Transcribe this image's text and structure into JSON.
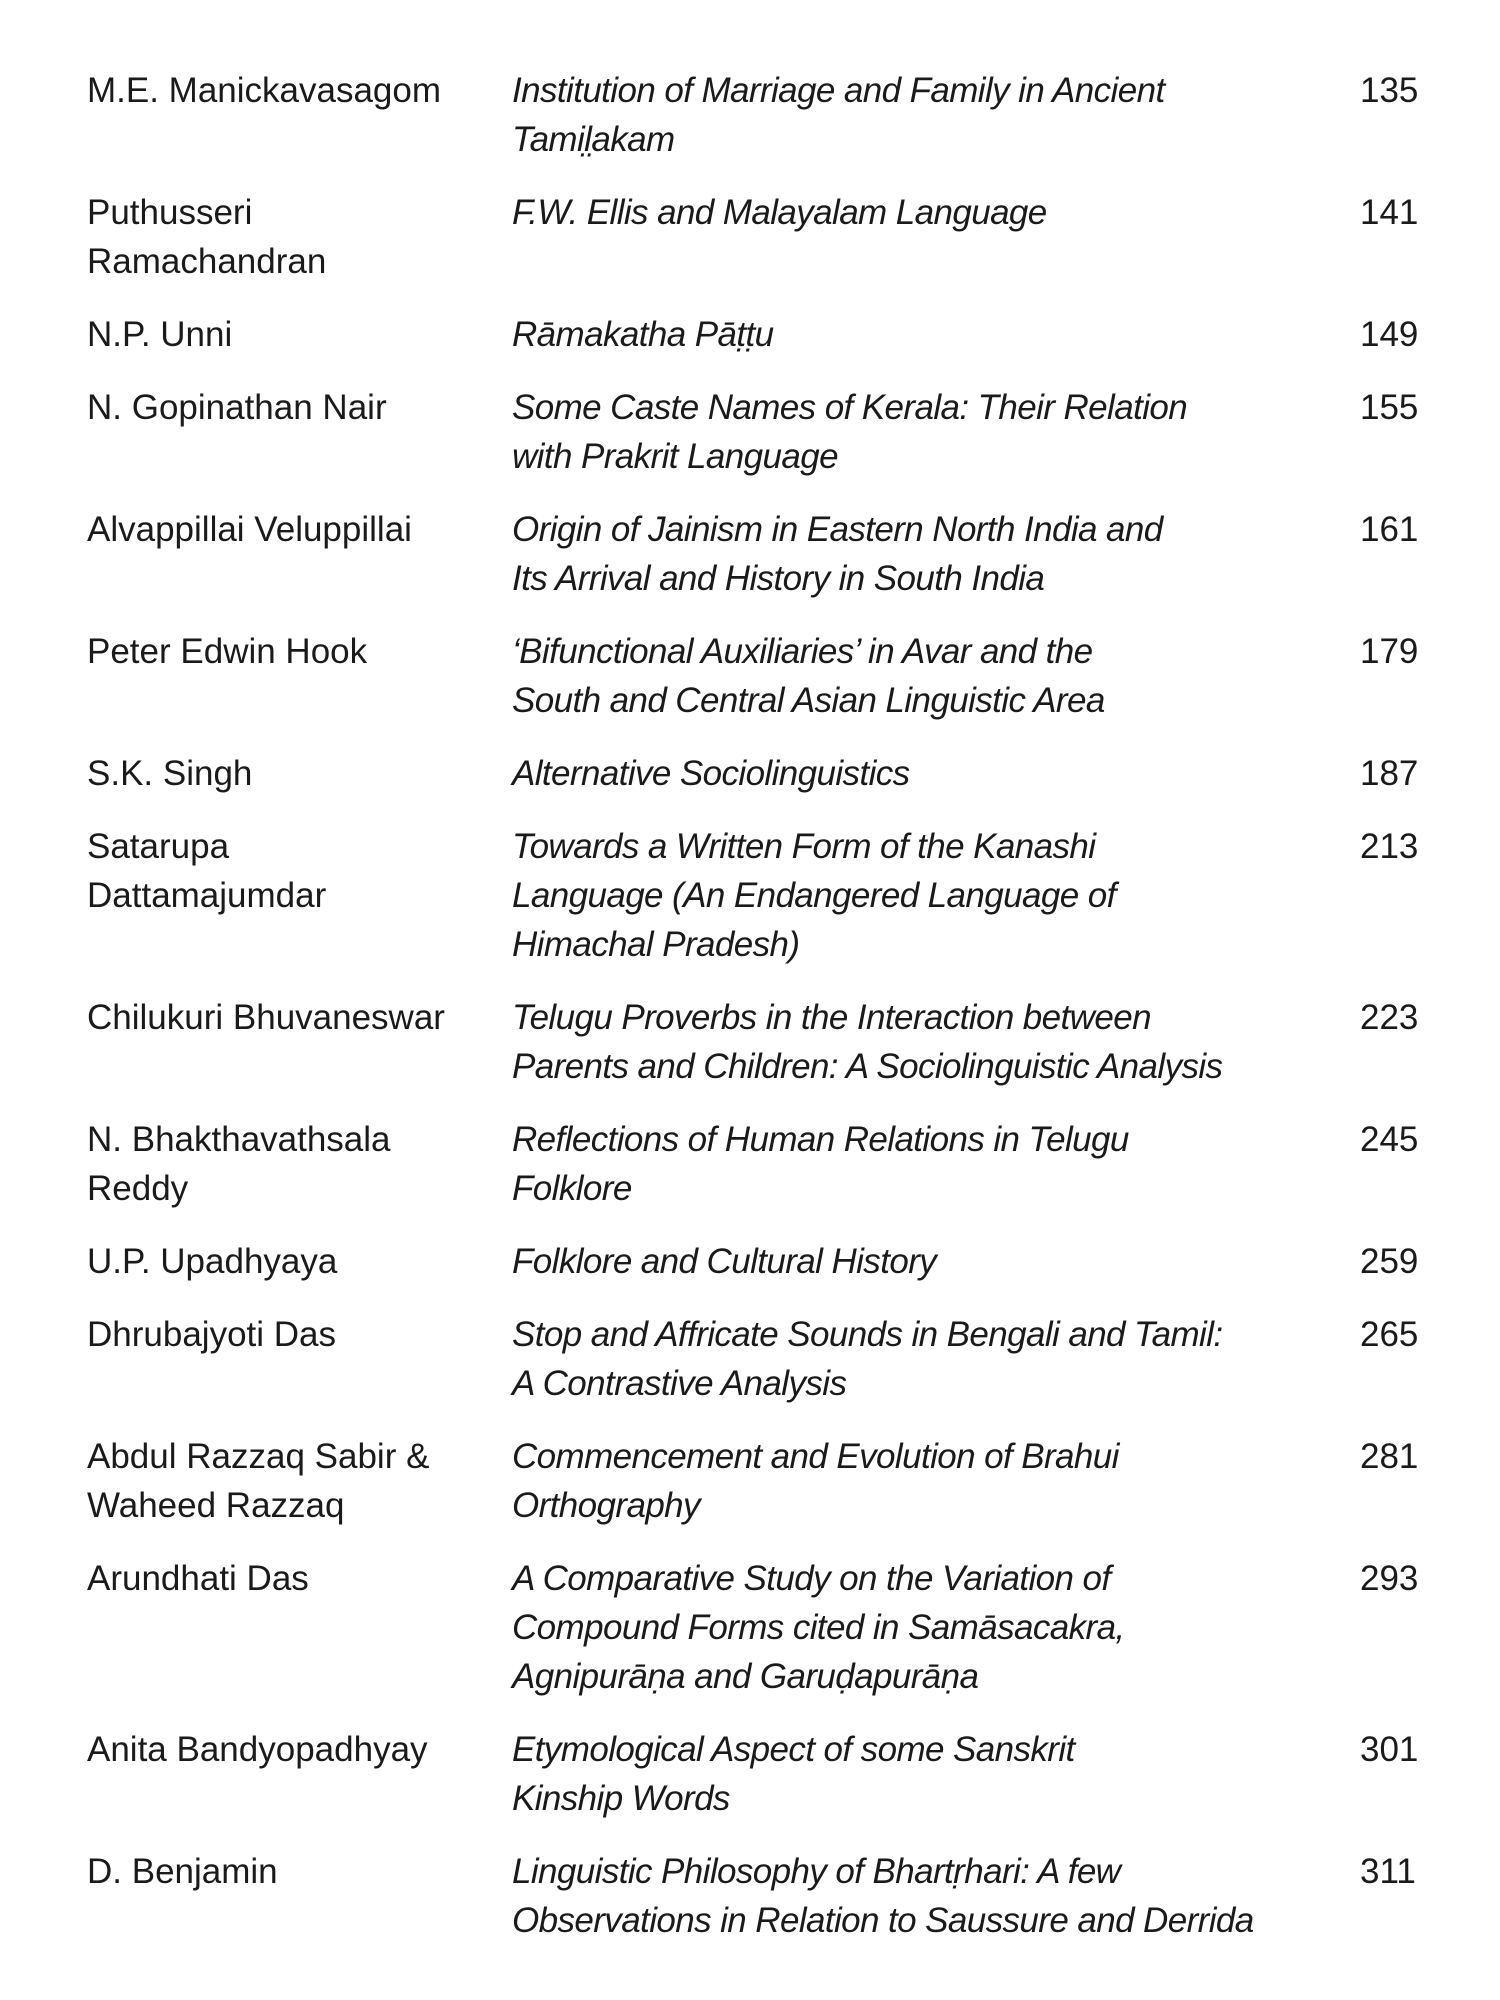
{
  "entries": [
    {
      "author": "M.E. Manickavasagom",
      "title": "Institution of Marriage and Family in Ancient\nTamil̤akam",
      "page": "135"
    },
    {
      "author": "Puthusseri\nRamachandran",
      "title": "F.W. Ellis and Malayalam Language",
      "page": "141"
    },
    {
      "author": "N.P. Unni",
      "title": "Rāmakatha Pāṭṭu",
      "page": "149"
    },
    {
      "author": "N. Gopinathan Nair",
      "title": "Some Caste Names of Kerala: Their Relation\nwith Prakrit Language",
      "page": "155"
    },
    {
      "author": "Alvappillai Veluppillai",
      "title": "Origin of Jainism in Eastern North India and\nIts Arrival and History in South India",
      "page": "161"
    },
    {
      "author": "Peter Edwin Hook",
      "title": "‘Bifunctional Auxiliaries’ in Avar and the\nSouth and Central Asian Linguistic Area",
      "page": "179"
    },
    {
      "author": "S.K. Singh",
      "title": "Alternative Sociolinguistics",
      "page": "187"
    },
    {
      "author": "Satarupa\nDattamajumdar",
      "title": "Towards a Written Form of the Kanashi\nLanguage (An Endangered Language of\nHimachal Pradesh)",
      "page": "213"
    },
    {
      "author": "Chilukuri Bhuvaneswar",
      "title": "Telugu Proverbs in the Interaction between\nParents and Children: A Sociolinguistic Analysis",
      "page": "223"
    },
    {
      "author": "N. Bhakthavathsala\nReddy",
      "title": "Reflections of Human Relations in Telugu\nFolklore",
      "page": "245"
    },
    {
      "author": "U.P. Upadhyaya",
      "title": "Folklore and Cultural History",
      "page": "259"
    },
    {
      "author": "Dhrubajyoti Das",
      "title": "Stop and Affricate Sounds in Bengali and Tamil:\nA Contrastive Analysis",
      "page": "265"
    },
    {
      "author": "Abdul Razzaq Sabir &\nWaheed Razzaq",
      "title": "Commencement and Evolution of Brahui\nOrthography",
      "page": "281"
    },
    {
      "author": "Arundhati Das",
      "title": "A Comparative Study on the Variation of\nCompound Forms cited in Samāsacakra,\nAgnipurāṇa and Garuḍapurāṇa",
      "page": "293"
    },
    {
      "author": "Anita Bandyopadhyay",
      "title": "Etymological Aspect of some Sanskrit\nKinship Words",
      "page": "301"
    },
    {
      "author": "D. Benjamin",
      "title": "Linguistic Philosophy of Bhartṛhari: A few\nObservations in Relation to Saussure and Derrida",
      "page": "311"
    }
  ]
}
